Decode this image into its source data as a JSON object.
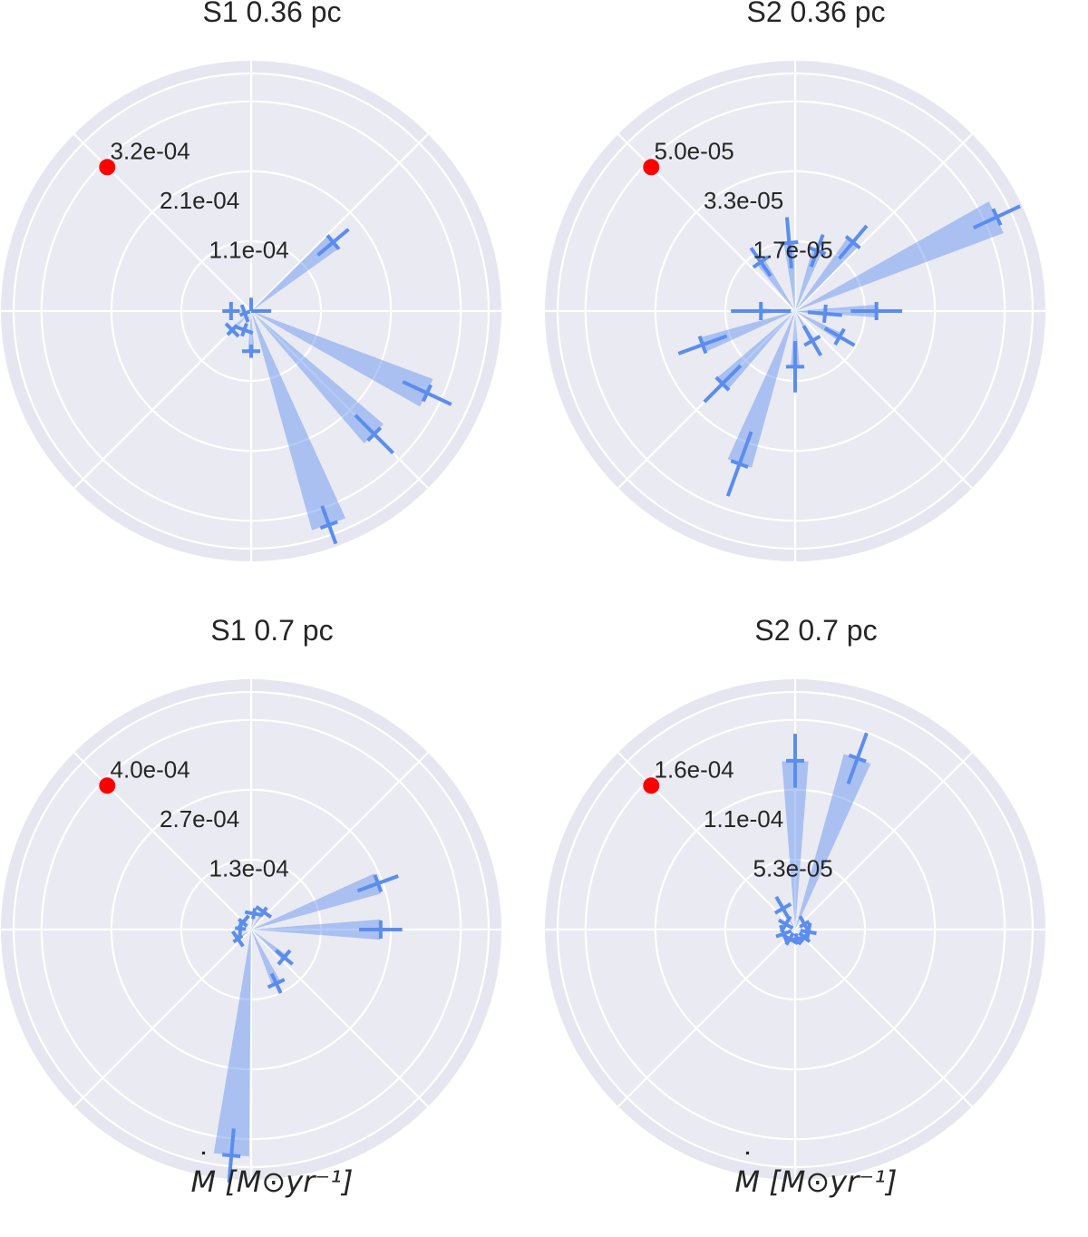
{
  "chart_data": [
    {
      "type": "polar",
      "title": "S1 0.36 pc",
      "xlabel": "",
      "r_ticks": [
        "1.1e-04",
        "2.1e-04",
        "3.2e-04"
      ],
      "rmax": 0.000355,
      "marker_color": "#ff0000",
      "series_color": "#5b8def",
      "bars": [
        {
          "angle_deg": 0,
          "value": 0.0,
          "err": 3e-05
        },
        {
          "angle_deg": 90,
          "value": 0.0,
          "err": 2e-05
        },
        {
          "angle_deg": 180,
          "value": 3e-05,
          "err": 1.3e-05
        },
        {
          "angle_deg": 200,
          "value": 1e-05,
          "err": 8e-06
        },
        {
          "angle_deg": 225,
          "value": 4e-05,
          "err": 1e-05
        },
        {
          "angle_deg": 250,
          "value": 3e-05,
          "err": 1e-05
        },
        {
          "angle_deg": 270,
          "value": 6e-05,
          "err": 1e-05
        },
        {
          "angle_deg": 40,
          "value": 0.00016,
          "err": 3e-05
        },
        {
          "angle_deg": -25,
          "value": 0.00029,
          "err": 4e-05
        },
        {
          "angle_deg": -45,
          "value": 0.00026,
          "err": 4e-05
        },
        {
          "angle_deg": -70,
          "value": 0.00034,
          "err": 3e-05
        }
      ]
    },
    {
      "type": "polar",
      "title": "S2 0.36 pc",
      "xlabel": "",
      "r_ticks": [
        "1.7e-05",
        "3.3e-05",
        "5.0e-05"
      ],
      "rmax": 5.55e-05,
      "marker_color": "#ff0000",
      "series_color": "#5b8def",
      "bars": [
        {
          "angle_deg": 0,
          "value": 1.9e-05,
          "err": 6e-06
        },
        {
          "angle_deg": 25,
          "value": 5.2e-05,
          "err": 6e-06
        },
        {
          "angle_deg": 50,
          "value": 2.1e-05,
          "err": 5e-06
        },
        {
          "angle_deg": 70,
          "value": 1.5e-05,
          "err": 4e-06
        },
        {
          "angle_deg": 95,
          "value": 1.6e-05,
          "err": 6e-06
        },
        {
          "angle_deg": 125,
          "value": 1.4e-05,
          "err": 4e-06
        },
        {
          "angle_deg": 180,
          "value": 8e-06,
          "err": 7e-06
        },
        {
          "angle_deg": 200,
          "value": 2.3e-05,
          "err": 6e-06
        },
        {
          "angle_deg": 225,
          "value": 2.4e-05,
          "err": 6e-06
        },
        {
          "angle_deg": 250,
          "value": 3.8e-05,
          "err": 8e-06
        },
        {
          "angle_deg": 270,
          "value": 1.3e-05,
          "err": 6e-06
        },
        {
          "angle_deg": 300,
          "value": 8e-06,
          "err": 4e-06
        },
        {
          "angle_deg": 330,
          "value": 1.2e-05,
          "err": 4e-06
        },
        {
          "angle_deg": 355,
          "value": 7e-06,
          "err": 4e-06
        }
      ]
    },
    {
      "type": "polar",
      "title": "S1 0.7 pc",
      "xlabel": "M [M⊙yr⁻¹]",
      "r_ticks": [
        "1.3e-04",
        "2.7e-04",
        "4.0e-04"
      ],
      "rmax": 0.00044,
      "marker_color": "#ff0000",
      "series_color": "#5b8def",
      "bars": [
        {
          "angle_deg": 0,
          "value": 0.00024,
          "err": 4e-05
        },
        {
          "angle_deg": 20,
          "value": 0.00025,
          "err": 4e-05
        },
        {
          "angle_deg": 55,
          "value": 4e-05,
          "err": 1e-05
        },
        {
          "angle_deg": 80,
          "value": 3e-05,
          "err": 1e-05
        },
        {
          "angle_deg": 140,
          "value": 2e-05,
          "err": 1e-05
        },
        {
          "angle_deg": 175,
          "value": 2e-05,
          "err": 1e-05
        },
        {
          "angle_deg": 215,
          "value": 3e-05,
          "err": 1e-05
        },
        {
          "angle_deg": 265,
          "value": 0.00042,
          "err": 5e-05
        },
        {
          "angle_deg": 295,
          "value": 0.00011,
          "err": 2e-05
        },
        {
          "angle_deg": 320,
          "value": 8e-05,
          "err": 2e-05
        }
      ]
    },
    {
      "type": "polar",
      "title": "S2 0.7 pc",
      "xlabel": "M [M⊙yr⁻¹]",
      "r_ticks": [
        "5.3e-05",
        "1.1e-04",
        "1.6e-04"
      ],
      "rmax": 0.000176,
      "marker_color": "#ff0000",
      "series_color": "#5b8def",
      "bars": [
        {
          "angle_deg": 90,
          "value": 0.000125,
          "err": 2e-05
        },
        {
          "angle_deg": 70,
          "value": 0.000135,
          "err": 2e-05
        },
        {
          "angle_deg": 120,
          "value": 1.8e-05,
          "err": 1e-05
        },
        {
          "angle_deg": 150,
          "value": 8e-06,
          "err": 6e-06
        },
        {
          "angle_deg": 200,
          "value": 9e-06,
          "err": 6e-06
        },
        {
          "angle_deg": 240,
          "value": 8e-06,
          "err": 5e-06
        },
        {
          "angle_deg": 280,
          "value": 7e-06,
          "err": 4e-06
        },
        {
          "angle_deg": 320,
          "value": 9e-06,
          "err": 5e-06
        },
        {
          "angle_deg": 350,
          "value": 1e-05,
          "err": 6e-06
        },
        {
          "angle_deg": 30,
          "value": 8e-06,
          "err": 4e-06
        }
      ]
    }
  ]
}
